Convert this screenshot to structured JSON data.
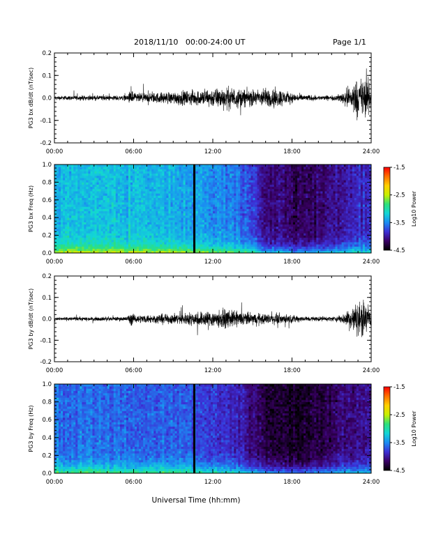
{
  "header": {
    "title": "2018/11/10   00:00-24:00 UT",
    "page": "Page 1/1"
  },
  "footer": {
    "xlabel": "Universal Time (hh:mm)"
  },
  "colors": {
    "trace": "#000000",
    "colormap": [
      "#000000",
      "#3a0066",
      "#3c2fd6",
      "#1b8cf2",
      "#12d6d6",
      "#2ee07a",
      "#c8f000",
      "#ffd000",
      "#ff7000",
      "#ff0000"
    ]
  },
  "chart_data": [
    {
      "type": "line",
      "ylabel": "PG3 bx dB/dt (nT/sec)",
      "xlim_hours": [
        0,
        24
      ],
      "ylim": [
        -0.2,
        0.2
      ],
      "xticks": [
        "00:00",
        "06:00",
        "12:00",
        "18:00",
        "24:00"
      ],
      "yticks": [
        "0.2",
        "0.1",
        "0.0",
        "-0.1",
        "-0.2"
      ],
      "series": [
        {
          "x_hours": [
            0,
            1,
            2,
            3,
            4,
            5,
            5.5,
            5.9,
            6,
            7,
            8,
            9,
            10,
            11,
            12,
            13,
            14,
            15,
            16,
            17,
            18,
            19,
            20,
            21,
            21.5,
            22,
            22.5,
            23,
            23.5,
            24
          ],
          "envelope": [
            0.012,
            0.014,
            0.015,
            0.015,
            0.015,
            0.016,
            0.018,
            0.06,
            0.03,
            0.03,
            0.035,
            0.04,
            0.045,
            0.05,
            0.06,
            0.07,
            0.06,
            0.05,
            0.06,
            0.06,
            0.03,
            0.02,
            0.015,
            0.015,
            0.02,
            0.05,
            0.09,
            0.12,
            0.13,
            0.1
          ]
        }
      ]
    },
    {
      "type": "heatmap",
      "ylabel": "PG3 bx Freq (Hz)",
      "xlim_hours": [
        0,
        24
      ],
      "ylim": [
        0,
        1
      ],
      "xticks": [
        "00:00",
        "06:00",
        "12:00",
        "18:00",
        "24:00"
      ],
      "yticks": [
        "1.0",
        "0.8",
        "0.6",
        "0.4",
        "0.2",
        "0.0"
      ],
      "colorbar": {
        "label": "Log10 Power",
        "range": [
          -4.5,
          -1.5
        ],
        "ticks": [
          "-1.5",
          "-2.5",
          "-3.5",
          "-4.5"
        ]
      },
      "data_gap_hours": 10.6,
      "time_hours": [
        0,
        3,
        6,
        9,
        10.6,
        12,
        14,
        15,
        16,
        17,
        18,
        19,
        20,
        21,
        22,
        23,
        24
      ],
      "background_log_power": [
        -3.3,
        -3.25,
        -3.3,
        -3.35,
        -3.4,
        -3.5,
        -3.6,
        -3.75,
        -4.1,
        -4.15,
        -4.2,
        -4.25,
        -4.15,
        -4.05,
        -4.0,
        -3.9,
        -3.85
      ],
      "low_freq_enhancement": 0.9
    },
    {
      "type": "line",
      "ylabel": "PG3 by dB/dt (nT/sec)",
      "xlim_hours": [
        0,
        24
      ],
      "ylim": [
        -0.2,
        0.2
      ],
      "xticks": [
        "00:00",
        "06:00",
        "12:00",
        "18:00",
        "24:00"
      ],
      "yticks": [
        "0.2",
        "0.1",
        "0.0",
        "-0.1",
        "-0.2"
      ],
      "series": [
        {
          "x_hours": [
            0,
            1,
            2,
            3,
            4,
            5,
            5.5,
            5.9,
            6,
            7,
            8,
            9,
            10,
            11,
            12,
            13,
            14,
            15,
            16,
            17,
            18,
            19,
            20,
            21,
            21.5,
            22,
            22.5,
            23,
            23.5,
            24
          ],
          "envelope": [
            0.01,
            0.012,
            0.013,
            0.013,
            0.013,
            0.014,
            0.016,
            0.05,
            0.025,
            0.028,
            0.03,
            0.035,
            0.04,
            0.05,
            0.055,
            0.06,
            0.05,
            0.04,
            0.035,
            0.035,
            0.025,
            0.018,
            0.015,
            0.015,
            0.02,
            0.04,
            0.08,
            0.11,
            0.12,
            0.08
          ]
        }
      ]
    },
    {
      "type": "heatmap",
      "ylabel": "PG3 by Freq (Hz)",
      "xlim_hours": [
        0,
        24
      ],
      "ylim": [
        0,
        1
      ],
      "xticks": [
        "00:00",
        "06:00",
        "12:00",
        "18:00",
        "24:00"
      ],
      "yticks": [
        "1.0",
        "0.8",
        "0.6",
        "0.4",
        "0.2",
        "0.0"
      ],
      "colorbar": {
        "label": "Log10 Power",
        "range": [
          -4.5,
          -1.5
        ],
        "ticks": [
          "-1.5",
          "-2.5",
          "-3.5",
          "-4.5"
        ]
      },
      "data_gap_hours": 10.6,
      "time_hours": [
        0,
        3,
        6,
        9,
        10.6,
        12,
        14,
        15,
        16,
        17,
        18,
        19,
        20,
        21,
        22,
        23,
        24
      ],
      "background_log_power": [
        -3.6,
        -3.6,
        -3.65,
        -3.65,
        -3.7,
        -3.8,
        -3.9,
        -4.1,
        -4.3,
        -4.35,
        -4.35,
        -4.4,
        -4.3,
        -4.2,
        -4.1,
        -4.05,
        -4.0
      ],
      "low_freq_enhancement": 0.9
    }
  ]
}
